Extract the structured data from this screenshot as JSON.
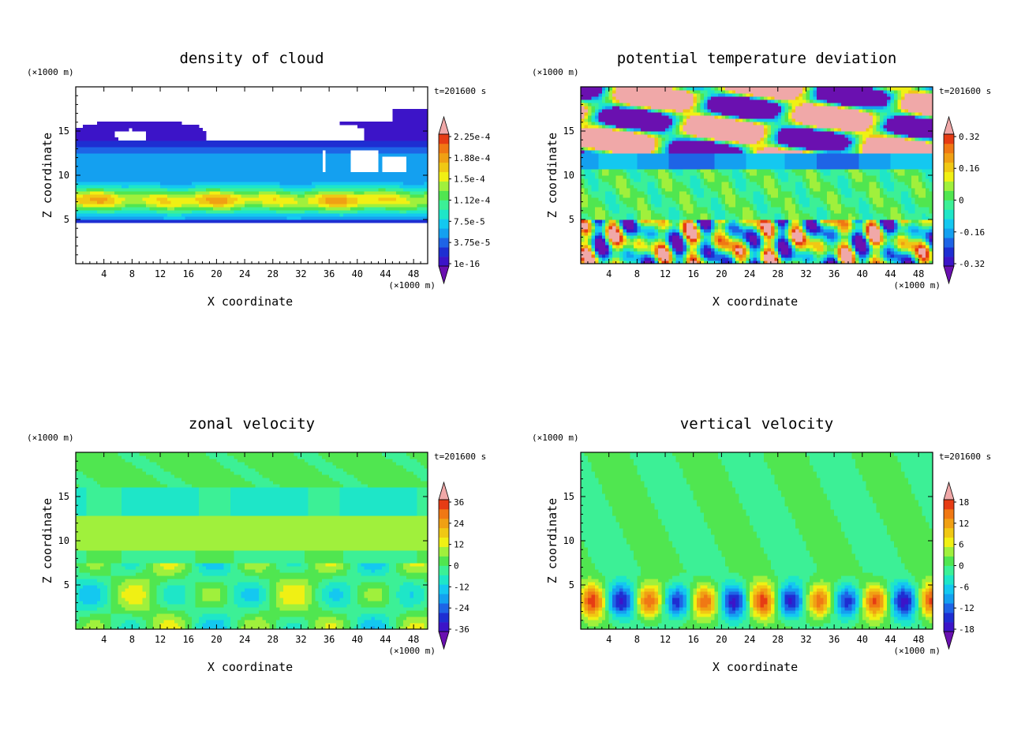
{
  "chart_data": [
    {
      "type": "heatmap",
      "title": "density of cloud",
      "xlabel": "X coordinate",
      "ylabel": "Z coordinate",
      "x_unit": "(×1000 m)",
      "y_unit": "(×1000 m)",
      "time_label": "t=201600 s",
      "xlim": [
        0,
        50
      ],
      "ylim": [
        0,
        20
      ],
      "x_ticks": [
        4,
        8,
        12,
        16,
        20,
        24,
        28,
        32,
        36,
        40,
        44,
        48
      ],
      "y_ticks": [
        5,
        10,
        15
      ],
      "colorbar_labels": [
        "1e-16",
        "3.75e-5",
        "7.5e-5",
        "1.12e-4",
        "1.5e-4",
        "1.88e-4",
        "2.25e-4"
      ],
      "palette": [
        "#6a10b0",
        "#3c14c8",
        "#1e2ed2",
        "#1e64e6",
        "#14a0f0",
        "#14c8f0",
        "#1ee6c8",
        "#3cf096",
        "#50e650",
        "#a0f03c",
        "#f0f014",
        "#f0c814",
        "#f0a014",
        "#f07814",
        "#e63c14",
        "#f0a8a8"
      ],
      "field_summary": "cloud layer between z=5 and z=14 with maximum near z=7; patches near z=15-17; empty (white) elsewhere"
    },
    {
      "type": "heatmap",
      "title": "potential temperature deviation",
      "xlabel": "X coordinate",
      "ylabel": "Z coordinate",
      "x_unit": "(×1000 m)",
      "y_unit": "(×1000 m)",
      "time_label": "t=201600 s",
      "xlim": [
        0,
        50
      ],
      "ylim": [
        0,
        20
      ],
      "x_ticks": [
        4,
        8,
        12,
        16,
        20,
        24,
        28,
        32,
        36,
        40,
        44,
        48
      ],
      "y_ticks": [
        5,
        10,
        15
      ],
      "colorbar_labels": [
        "-0.32",
        "-0.16",
        "0",
        "0.16",
        "0.32"
      ],
      "palette": [
        "#6a10b0",
        "#3c14c8",
        "#1e2ed2",
        "#1e64e6",
        "#14a0f0",
        "#14c8f0",
        "#1ee6c8",
        "#3cf096",
        "#50e650",
        "#a0f03c",
        "#f0f014",
        "#f0c814",
        "#f0a014",
        "#f07814",
        "#e63c14",
        "#f0a8a8"
      ],
      "field_summary": "mixed positive/negative layer above z=13, negative band near z=11-12, near-neutral z=5-11, strong alternating cells below z=5"
    },
    {
      "type": "heatmap",
      "title": "zonal velocity",
      "xlabel": "X coordinate",
      "ylabel": "Z coordinate",
      "x_unit": "(×1000 m)",
      "y_unit": "(×1000 m)",
      "time_label": "t=201600 s",
      "xlim": [
        0,
        50
      ],
      "ylim": [
        0,
        20
      ],
      "x_ticks": [
        4,
        8,
        12,
        16,
        20,
        24,
        28,
        32,
        36,
        40,
        44,
        48
      ],
      "y_ticks": [
        5,
        10,
        15
      ],
      "colorbar_labels": [
        "-36",
        "-24",
        "-12",
        "0",
        "12",
        "24",
        "36"
      ],
      "palette": [
        "#6a10b0",
        "#3c14c8",
        "#1e2ed2",
        "#1e64e6",
        "#14a0f0",
        "#14c8f0",
        "#1ee6c8",
        "#3cf096",
        "#50e650",
        "#a0f03c",
        "#f0f014",
        "#f0c814",
        "#f0a014",
        "#f07814",
        "#e63c14",
        "#f0a8a8"
      ],
      "field_summary": "weakly positive band z=9-13, weakly negative band z=13-16, mixed small cells below z=7"
    },
    {
      "type": "heatmap",
      "title": "vertical velocity",
      "xlabel": "X coordinate",
      "ylabel": "Z coordinate",
      "x_unit": "(×1000 m)",
      "y_unit": "(×1000 m)",
      "time_label": "t=201600 s",
      "xlim": [
        0,
        50
      ],
      "ylim": [
        0,
        20
      ],
      "x_ticks": [
        4,
        8,
        12,
        16,
        20,
        24,
        28,
        32,
        36,
        40,
        44,
        48
      ],
      "y_ticks": [
        5,
        10,
        15
      ],
      "colorbar_labels": [
        "-18",
        "-12",
        "-6",
        "0",
        "6",
        "12",
        "18"
      ],
      "palette": [
        "#6a10b0",
        "#3c14c8",
        "#1e2ed2",
        "#1e64e6",
        "#14a0f0",
        "#14c8f0",
        "#1ee6c8",
        "#3cf096",
        "#50e650",
        "#a0f03c",
        "#f0f014",
        "#f0c814",
        "#f0a014",
        "#f07814",
        "#e63c14",
        "#f0a8a8"
      ],
      "field_summary": "near zero above z=7; alternating up/down cells below z=6 centered near x=3, 7, 11, 15, 25, 29, 33, 38, 43, 47"
    }
  ]
}
